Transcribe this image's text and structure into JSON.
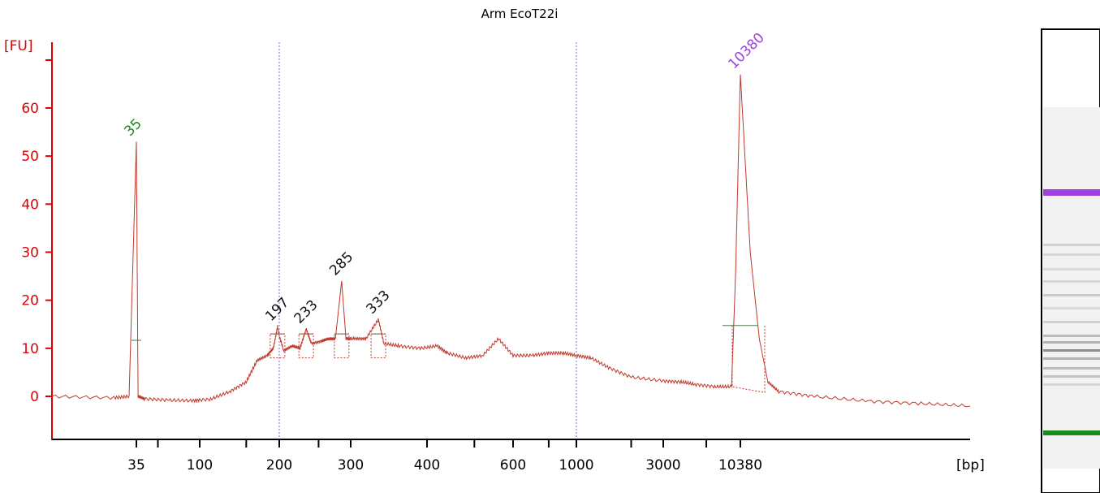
{
  "chart_data": {
    "type": "line",
    "title": "Arm EcoT22i",
    "ylabel": "[FU]",
    "xlabel": "[bp]",
    "ylim": [
      -9,
      72
    ],
    "yticks": [
      0,
      10,
      20,
      30,
      40,
      50,
      60
    ],
    "xticks": [
      "35",
      "100",
      "200",
      "300",
      "400",
      "600",
      "1000",
      "3000",
      "10380"
    ],
    "grid": false,
    "reference_lines_bp": [
      200,
      1000
    ],
    "peaks": [
      {
        "label": "35",
        "bp": 35,
        "height": 53,
        "color": "#1a8a1a"
      },
      {
        "label": "197",
        "bp": 197,
        "height": 14.5,
        "color": "#111111"
      },
      {
        "label": "233",
        "bp": 233,
        "height": 14,
        "color": "#111111"
      },
      {
        "label": "285",
        "bp": 285,
        "height": 24,
        "color": "#111111"
      },
      {
        "label": "333",
        "bp": 333,
        "height": 16,
        "color": "#111111"
      },
      {
        "label": "10380",
        "bp": 10380,
        "height": 67,
        "color": "#a040e0"
      }
    ],
    "series": [
      {
        "color": "#c0392b",
        "points": [
          [
            25,
            0
          ],
          [
            32,
            -0.3
          ],
          [
            34,
            0
          ],
          [
            35,
            53
          ],
          [
            36,
            0
          ],
          [
            40,
            -0.5
          ],
          [
            60,
            -0.8
          ],
          [
            90,
            -0.9
          ],
          [
            110,
            -0.6
          ],
          [
            130,
            1
          ],
          [
            150,
            3
          ],
          [
            165,
            7.5
          ],
          [
            180,
            8.5
          ],
          [
            190,
            10
          ],
          [
            197,
            14.5
          ],
          [
            205,
            9.5
          ],
          [
            215,
            10.5
          ],
          [
            225,
            10
          ],
          [
            233,
            14
          ],
          [
            240,
            11
          ],
          [
            255,
            11.5
          ],
          [
            265,
            12
          ],
          [
            275,
            12
          ],
          [
            285,
            24
          ],
          [
            292,
            12
          ],
          [
            305,
            12
          ],
          [
            318,
            12
          ],
          [
            333,
            16
          ],
          [
            340,
            11
          ],
          [
            360,
            10.5
          ],
          [
            390,
            10
          ],
          [
            420,
            10.5
          ],
          [
            440,
            9
          ],
          [
            480,
            8
          ],
          [
            520,
            8.5
          ],
          [
            560,
            12
          ],
          [
            600,
            8.5
          ],
          [
            700,
            8.5
          ],
          [
            800,
            9
          ],
          [
            900,
            9
          ],
          [
            1000,
            8.5
          ],
          [
            1200,
            8
          ],
          [
            1500,
            6
          ],
          [
            2000,
            4
          ],
          [
            3000,
            3.2
          ],
          [
            4000,
            3
          ],
          [
            5000,
            2.5
          ],
          [
            7000,
            2
          ],
          [
            9000,
            2
          ],
          [
            9600,
            25
          ],
          [
            10380,
            67
          ],
          [
            11000,
            30
          ],
          [
            11600,
            12
          ],
          [
            12200,
            3
          ],
          [
            13000,
            1
          ],
          [
            16000,
            0
          ],
          [
            22000,
            -1
          ],
          [
            30000,
            -1.5
          ],
          [
            40000,
            -2
          ]
        ]
      }
    ]
  },
  "gel": {
    "upper_band_color": "#a040e0",
    "lower_band_color": "#1a8a1a"
  }
}
